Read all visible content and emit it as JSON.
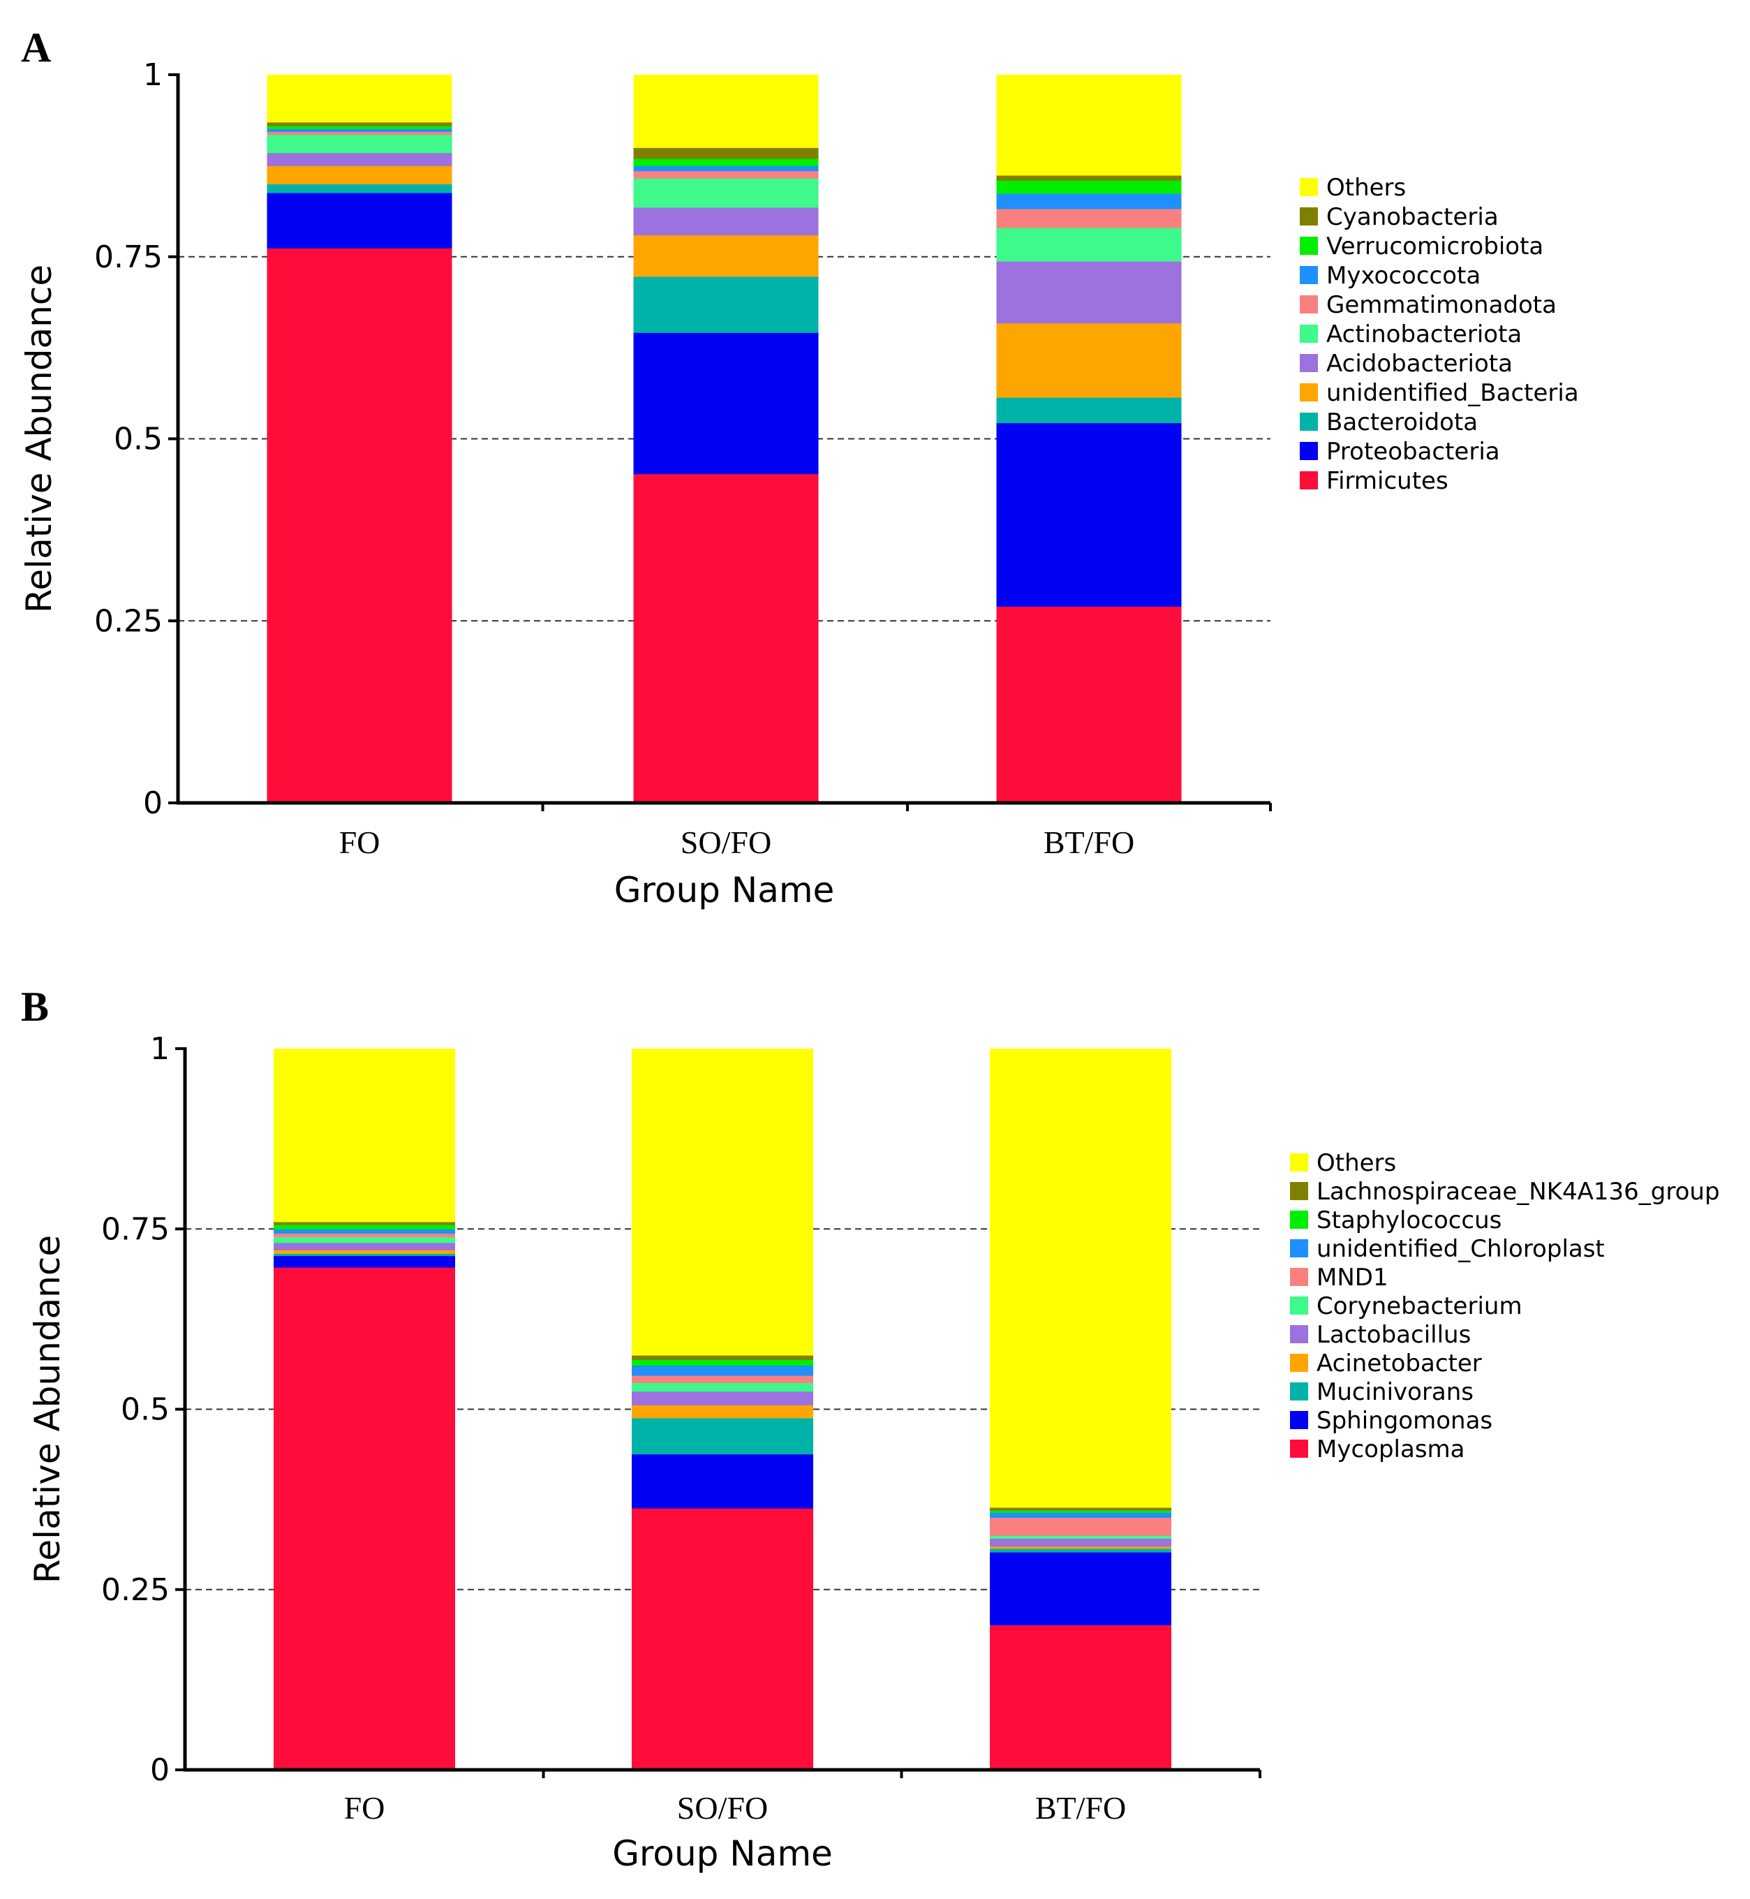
{
  "chart_data": [
    {
      "panel": "A",
      "type": "bar",
      "stacked": true,
      "xlabel": "Group Name",
      "ylabel": "Relative Abundance",
      "ylim": [
        0,
        1
      ],
      "yticks": [
        "0",
        "0.25",
        "0.5",
        "0.75",
        "1"
      ],
      "grid": "dashed horizontal at 0.25, 0.5, 0.75",
      "legend_position": "right",
      "categories": [
        "FO",
        "SO/FO",
        "BT/FO"
      ],
      "series": [
        {
          "name": "Firmicutes",
          "color": "#ff0d3a",
          "values": [
            0.762,
            0.452,
            0.27
          ]
        },
        {
          "name": "Proteobacteria",
          "color": "#0000f5",
          "values": [
            0.076,
            0.194,
            0.252
          ]
        },
        {
          "name": "Bacteroidota",
          "color": "#00b3a8",
          "values": [
            0.012,
            0.077,
            0.035
          ]
        },
        {
          "name": "unidentified_Bacteria",
          "color": "#ffa500",
          "values": [
            0.025,
            0.057,
            0.102
          ]
        },
        {
          "name": "Acidobacteriota",
          "color": "#9b72de",
          "values": [
            0.018,
            0.038,
            0.085
          ]
        },
        {
          "name": "Actinobacteriota",
          "color": "#3dfa8a",
          "values": [
            0.025,
            0.04,
            0.046
          ]
        },
        {
          "name": "Gemmatimonadota",
          "color": "#fa8080",
          "values": [
            0.004,
            0.01,
            0.026
          ]
        },
        {
          "name": "Myxococcota",
          "color": "#1e90ff",
          "values": [
            0.004,
            0.007,
            0.021
          ]
        },
        {
          "name": "Verrucomicrobiota",
          "color": "#00ee00",
          "values": [
            0.004,
            0.01,
            0.018
          ]
        },
        {
          "name": "Cyanobacteria",
          "color": "#808000",
          "values": [
            0.005,
            0.015,
            0.007
          ]
        },
        {
          "name": "Others",
          "color": "#ffff00",
          "values": [
            0.065,
            0.1,
            0.138
          ]
        }
      ]
    },
    {
      "panel": "B",
      "type": "bar",
      "stacked": true,
      "xlabel": "Group Name",
      "ylabel": "Relative Abundance",
      "ylim": [
        0,
        1
      ],
      "yticks": [
        "0",
        "0.25",
        "0.5",
        "0.75",
        "1"
      ],
      "grid": "dashed horizontal at 0.25, 0.5, 0.75",
      "legend_position": "right",
      "categories": [
        "FO",
        "SO/FO",
        "BT/FO"
      ],
      "series": [
        {
          "name": "Mycoplasma",
          "color": "#ff0d3a",
          "values": [
            0.697,
            0.363,
            0.201
          ]
        },
        {
          "name": "Sphingomonas",
          "color": "#0000f5",
          "values": [
            0.016,
            0.075,
            0.101
          ]
        },
        {
          "name": "Mucinivorans",
          "color": "#00b3a8",
          "values": [
            0.003,
            0.05,
            0.005
          ]
        },
        {
          "name": "Acinetobacter",
          "color": "#ffa500",
          "values": [
            0.005,
            0.018,
            0.003
          ]
        },
        {
          "name": "Lactobacillus",
          "color": "#9b72de",
          "values": [
            0.01,
            0.019,
            0.011
          ]
        },
        {
          "name": "Corynebacterium",
          "color": "#3dfa8a",
          "values": [
            0.008,
            0.012,
            0.004
          ]
        },
        {
          "name": "MND1",
          "color": "#fa8080",
          "values": [
            0.005,
            0.01,
            0.025
          ]
        },
        {
          "name": "unidentified_Chloroplast",
          "color": "#1e90ff",
          "values": [
            0.006,
            0.014,
            0.007
          ]
        },
        {
          "name": "Staphylococcus",
          "color": "#00ee00",
          "values": [
            0.006,
            0.008,
            0.003
          ]
        },
        {
          "name": "Lachnospiraceae_NK4A136_group",
          "color": "#808000",
          "values": [
            0.004,
            0.006,
            0.004
          ]
        },
        {
          "name": "Others",
          "color": "#ffff00",
          "values": [
            0.24,
            0.425,
            0.636
          ]
        }
      ]
    }
  ]
}
